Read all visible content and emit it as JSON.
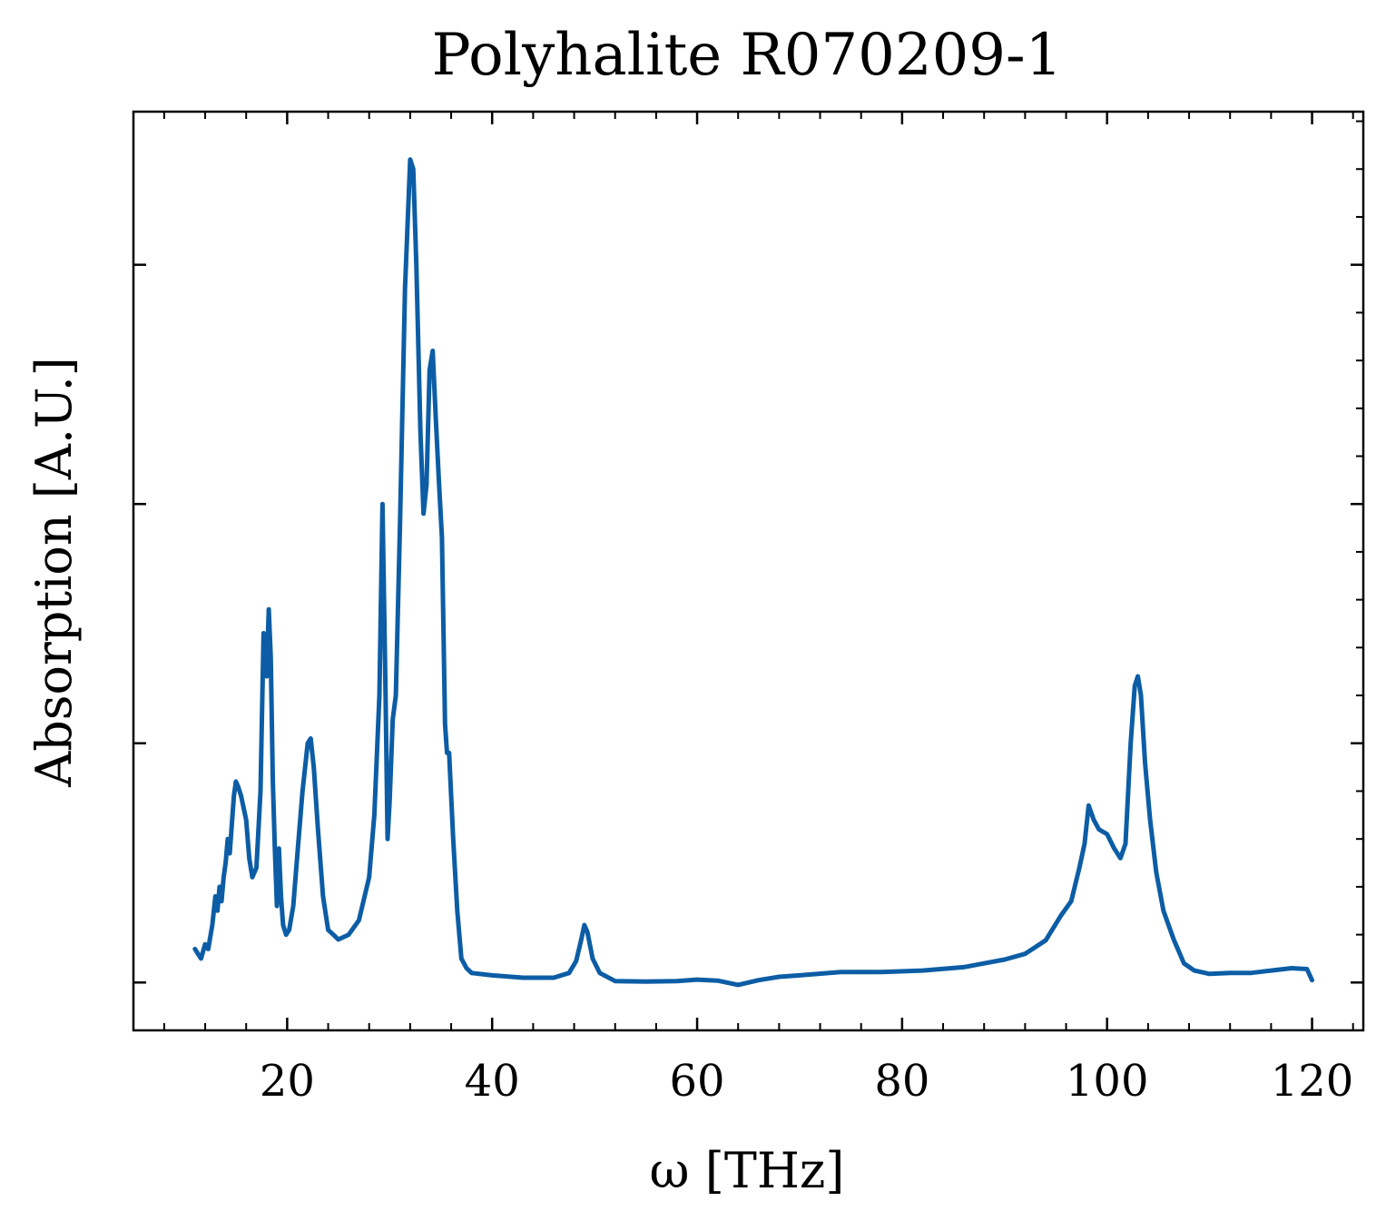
{
  "chart_data": {
    "type": "line",
    "title": "Polyhalite R070209-1",
    "xlabel": "ω [THz]",
    "ylabel": "Absorption [A.U.]",
    "xlim": [
      5,
      125
    ],
    "ylim": [
      -0.1,
      1.82
    ],
    "xticks": [
      20,
      40,
      60,
      80,
      100,
      120
    ],
    "x_minor_step": 4,
    "yticks": [
      0,
      0.5,
      1.0,
      1.5
    ],
    "y_tick_labels_shown": false,
    "y_minor_step": 0.1,
    "grid": false,
    "legend": "none",
    "color": "#0C5DA5",
    "series": [
      {
        "x": [
          11.0,
          11.3,
          11.6,
          12.0,
          12.3,
          12.7,
          13.0,
          13.2,
          13.4,
          13.6,
          13.8,
          14.0,
          14.2,
          14.4,
          14.6,
          14.8,
          15.0,
          15.2,
          15.5,
          16.0,
          16.3,
          16.6,
          17.0,
          17.4,
          17.7,
          18.0,
          18.2,
          18.4,
          18.6,
          18.8,
          19.0,
          19.2,
          19.4,
          19.6,
          19.9,
          20.2,
          20.6,
          21.0,
          21.5,
          22.0,
          22.3,
          22.6,
          23.0,
          23.5,
          24.0,
          24.5,
          25.0,
          26.0,
          27.0,
          28.0,
          28.5,
          29.0,
          29.3,
          29.6,
          29.8,
          30.0,
          30.3,
          30.6,
          31.0,
          31.5,
          32.0,
          32.3,
          32.6,
          33.0,
          33.3,
          33.6,
          33.9,
          34.2,
          34.5,
          34.8,
          35.1,
          35.4,
          35.6,
          35.8,
          36.2,
          36.6,
          37.0,
          37.5,
          38.0,
          40.0,
          43.0,
          46.0,
          47.5,
          48.2,
          48.7,
          49.0,
          49.3,
          49.8,
          50.5,
          52.0,
          55.0,
          58.0,
          60.0,
          62.0,
          64.0,
          66.0,
          68.0,
          70.0,
          74.0,
          78.0,
          82.0,
          86.0,
          88.0,
          90.0,
          92.0,
          94.0,
          95.5,
          96.5,
          97.3,
          97.8,
          98.2,
          98.7,
          99.2,
          100.0,
          100.7,
          101.3,
          101.8,
          102.3,
          102.7,
          103.0,
          103.3,
          103.7,
          104.2,
          104.8,
          105.5,
          106.5,
          107.5,
          108.5,
          110.0,
          112.0,
          114.0,
          116.0,
          118.0,
          119.5,
          120.0
        ],
        "y": [
          0.07,
          0.06,
          0.05,
          0.08,
          0.07,
          0.12,
          0.18,
          0.15,
          0.2,
          0.17,
          0.22,
          0.25,
          0.3,
          0.27,
          0.33,
          0.39,
          0.42,
          0.41,
          0.39,
          0.34,
          0.26,
          0.22,
          0.24,
          0.4,
          0.73,
          0.64,
          0.78,
          0.68,
          0.42,
          0.28,
          0.16,
          0.28,
          0.18,
          0.12,
          0.1,
          0.11,
          0.16,
          0.27,
          0.4,
          0.5,
          0.51,
          0.45,
          0.32,
          0.18,
          0.11,
          0.1,
          0.09,
          0.1,
          0.13,
          0.22,
          0.35,
          0.6,
          1.0,
          0.6,
          0.3,
          0.38,
          0.55,
          0.6,
          0.95,
          1.45,
          1.72,
          1.7,
          1.5,
          1.15,
          0.98,
          1.04,
          1.28,
          1.32,
          1.18,
          1.05,
          0.93,
          0.54,
          0.48,
          0.48,
          0.3,
          0.15,
          0.05,
          0.03,
          0.02,
          0.015,
          0.01,
          0.01,
          0.02,
          0.045,
          0.09,
          0.12,
          0.105,
          0.05,
          0.02,
          0.003,
          0.002,
          0.003,
          0.006,
          0.004,
          -0.005,
          0.005,
          0.012,
          0.015,
          0.022,
          0.022,
          0.025,
          0.032,
          0.04,
          0.048,
          0.06,
          0.088,
          0.14,
          0.17,
          0.24,
          0.29,
          0.37,
          0.34,
          0.32,
          0.31,
          0.28,
          0.26,
          0.29,
          0.5,
          0.62,
          0.64,
          0.6,
          0.46,
          0.34,
          0.23,
          0.15,
          0.09,
          0.04,
          0.025,
          0.018,
          0.02,
          0.02,
          0.025,
          0.03,
          0.028,
          0.005
        ]
      }
    ]
  }
}
